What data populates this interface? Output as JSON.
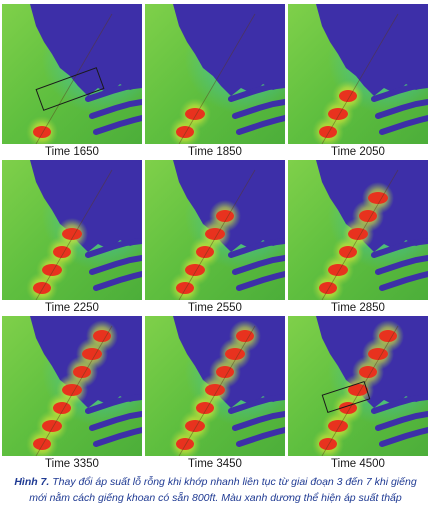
{
  "panels": [
    {
      "label": "Time 1650",
      "stage": 1,
      "box": true
    },
    {
      "label": "Time 1850",
      "stage": 2,
      "box": false
    },
    {
      "label": "Time 2050",
      "stage": 3,
      "box": false
    },
    {
      "label": "Time 2250",
      "stage": 4,
      "box": false
    },
    {
      "label": "Time 2550",
      "stage": 5,
      "box": false
    },
    {
      "label": "Time 2850",
      "stage": 6,
      "box": false
    },
    {
      "label": "Time 3350",
      "stage": 7,
      "box": false
    },
    {
      "label": "Time 3450",
      "stage": 8,
      "box": false
    },
    {
      "label": "Time 4500",
      "stage": 9,
      "box": true
    }
  ],
  "caption": {
    "prefix": "Hình 7.",
    "text": " Thay đổi áp suất lỗ rỗng khi khớp nhanh liên tục từ giai đoạn 3 đến 7 khi giếng mới nằm cách giếng khoan có sẵn 800ft. Màu xanh dương thể hiện áp suất thấp"
  },
  "colors": {
    "background_green": "#5fbf3f",
    "low_pressure_blue": "#3d2fa8",
    "high_pressure_red": "#e8321e",
    "halo_yellow": "#f3e62a",
    "cyan_halo": "#38c4d8"
  }
}
